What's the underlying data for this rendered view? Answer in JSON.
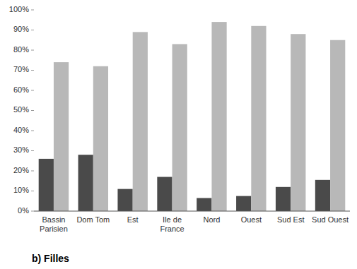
{
  "chart_data": {
    "type": "bar",
    "xlabel": "b) Filles",
    "categories": [
      "Bassin\nParisien",
      "Dom Tom",
      "Est",
      "Ile de\nFrance",
      "Nord",
      "Ouest",
      "Sud Est",
      "Sud Ouest"
    ],
    "series": [
      {
        "color": "#4a4a4a",
        "values": [
          26,
          28,
          11,
          17,
          6.5,
          7.5,
          12,
          15.5
        ]
      },
      {
        "color": "#b8b8b8",
        "values": [
          74,
          72,
          89,
          83,
          94,
          92,
          88,
          85
        ]
      }
    ],
    "ylim": [
      0,
      100
    ],
    "yticks": [
      {
        "value": 0,
        "label": "0%"
      },
      {
        "value": 10,
        "label": "10%"
      },
      {
        "value": 20,
        "label": "20%"
      },
      {
        "value": 30,
        "label": "30%"
      },
      {
        "value": 40,
        "label": "40%"
      },
      {
        "value": 50,
        "label": "50%"
      },
      {
        "value": 60,
        "label": "60%"
      },
      {
        "value": 70,
        "label": "70%"
      },
      {
        "value": 80,
        "label": "80%"
      },
      {
        "value": 90,
        "label": "90%"
      },
      {
        "value": 100,
        "label": "100%"
      }
    ],
    "grid": false
  }
}
